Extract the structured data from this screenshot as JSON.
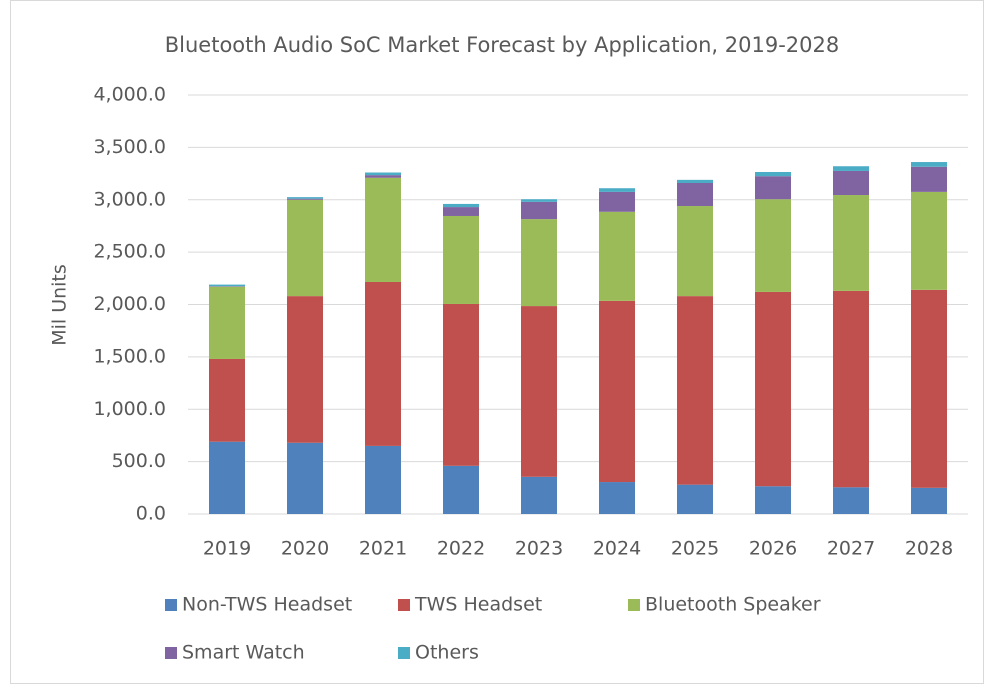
{
  "chart_data": {
    "type": "stacked_bar",
    "title": "Bluetooth Audio SoC Market Forecast by Application, 2019-2028",
    "y_label": "Mil Units",
    "categories": [
      "2019",
      "2020",
      "2021",
      "2022",
      "2023",
      "2024",
      "2025",
      "2026",
      "2027",
      "2028"
    ],
    "series": [
      {
        "name": "Non-TWS Headset",
        "color": "#4f81bd",
        "values": [
          690,
          680,
          650,
          460,
          355,
          305,
          280,
          265,
          255,
          250
        ]
      },
      {
        "name": "TWS Headset",
        "color": "#c0504d",
        "values": [
          790,
          1400,
          1565,
          1545,
          1630,
          1730,
          1800,
          1855,
          1875,
          1890
        ]
      },
      {
        "name": "Bluetooth Speaker",
        "color": "#9bbb59",
        "values": [
          690,
          920,
          995,
          840,
          830,
          850,
          860,
          885,
          915,
          935
        ]
      },
      {
        "name": "Smart Watch",
        "color": "#8064a2",
        "values": [
          5,
          10,
          25,
          85,
          165,
          190,
          220,
          220,
          230,
          240
        ]
      },
      {
        "name": "Others",
        "color": "#4bacc6",
        "values": [
          15,
          15,
          25,
          30,
          25,
          35,
          30,
          40,
          45,
          45
        ]
      }
    ],
    "ylim": [
      0,
      4000
    ],
    "yticks": [
      {
        "value": 0,
        "label": "0.0"
      },
      {
        "value": 500,
        "label": "500.0"
      },
      {
        "value": 1000,
        "label": "1,000.0"
      },
      {
        "value": 1500,
        "label": "1,500.0"
      },
      {
        "value": 2000,
        "label": "2,000.0"
      },
      {
        "value": 2500,
        "label": "2,500.0"
      },
      {
        "value": 3000,
        "label": "3,000.0"
      },
      {
        "value": 3500,
        "label": "3,500.0"
      },
      {
        "value": 4000,
        "label": "4,000.0"
      }
    ],
    "grid": true,
    "legend": "bottom"
  }
}
